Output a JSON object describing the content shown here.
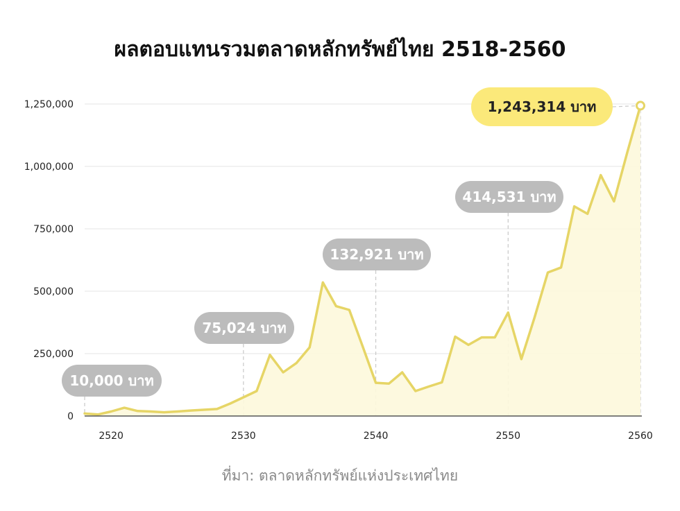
{
  "chart_data": {
    "type": "area",
    "title": "ผลตอบแทนรวมตลาดหลักทรัพย์ไทย 2518-2560",
    "source": "ที่มา: ตลาดหลักทรัพย์แห่งประเทศไทย",
    "xlabel": "",
    "ylabel": "",
    "xlim": [
      2518,
      2560
    ],
    "ylim": [
      0,
      1250000
    ],
    "x_ticks": [
      "2520",
      "2530",
      "2540",
      "2550",
      "2560"
    ],
    "y_ticks": [
      "0",
      "250,000",
      "500,000",
      "750,000",
      "1,000,000",
      "1,250,000"
    ],
    "grid": true,
    "series": [
      {
        "color": "#e6d566",
        "fill": "#fdf8dc",
        "x": [
          2518,
          2519,
          2520,
          2521,
          2522,
          2523,
          2524,
          2525,
          2526,
          2527,
          2528,
          2529,
          2530,
          2531,
          2532,
          2533,
          2534,
          2535,
          2536,
          2537,
          2538,
          2539,
          2540,
          2541,
          2542,
          2543,
          2544,
          2545,
          2546,
          2547,
          2548,
          2549,
          2550,
          2551,
          2552,
          2553,
          2554,
          2555,
          2556,
          2557,
          2558,
          2559,
          2560
        ],
        "values": [
          10000,
          6000,
          18000,
          33000,
          20000,
          18000,
          15000,
          18000,
          22000,
          25000,
          28000,
          50000,
          75024,
          100000,
          245000,
          175000,
          212000,
          275000,
          535000,
          440000,
          425000,
          280000,
          132921,
          130000,
          175000,
          100000,
          118000,
          135000,
          318000,
          285000,
          315000,
          315000,
          414531,
          228000,
          395000,
          575000,
          595000,
          840000,
          810000,
          965000,
          860000,
          1055000,
          1243314
        ]
      }
    ],
    "annotations": [
      {
        "x": 2518,
        "value": 10000,
        "label": "10,000 บาท",
        "style": "gray"
      },
      {
        "x": 2530,
        "value": 75024,
        "label": "75,024 บาท",
        "style": "gray"
      },
      {
        "x": 2540,
        "value": 132921,
        "label": "132,921 บาท",
        "style": "gray"
      },
      {
        "x": 2550,
        "value": 414531,
        "label": "414,531 บาท",
        "style": "gray"
      },
      {
        "x": 2560,
        "value": 1243314,
        "label": "1,243,314 บาท",
        "style": "highlight"
      }
    ],
    "colors": {
      "line": "#e6d566",
      "area_fill": "#fdf8dc",
      "gray_callout": "#bcbcbc",
      "highlight_callout": "#fbe97a",
      "highlight_text": "#222222",
      "gray_text": "#ffffff",
      "gridline": "#e6e6e6"
    }
  }
}
